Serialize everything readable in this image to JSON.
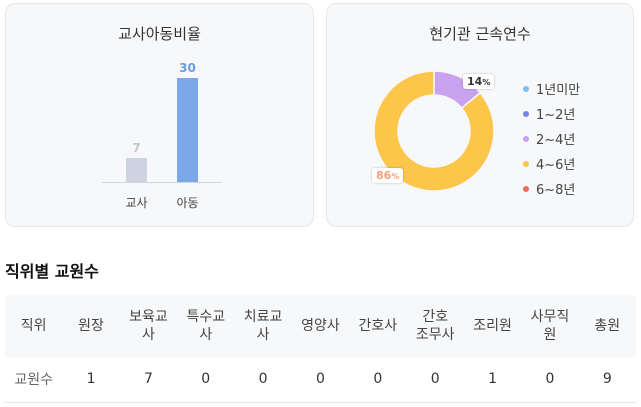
{
  "teacher_turnover": {
    "title": "교사아동비율",
    "chart_data": {
      "type": "bar",
      "categories": [
        "교사",
        "아동"
      ],
      "values": [
        7,
        30
      ],
      "colors": [
        "#cdd3e0",
        "#7aa8e8"
      ],
      "value_label_colors": [
        "#c2c6cf",
        "#6b9be0"
      ]
    }
  },
  "tenure": {
    "title": "현기관 근속연수",
    "chart_data": {
      "type": "pie",
      "slices": [
        {
          "label": "1년미만",
          "value": 0,
          "color": "#7ec1ec"
        },
        {
          "label": "1~2년",
          "value": 0,
          "color": "#6f86e6"
        },
        {
          "label": "2~4년",
          "value": 14,
          "color": "#c9a2f0"
        },
        {
          "label": "4~6년",
          "value": 86,
          "color": "#fcc64b"
        },
        {
          "label": "6~8년",
          "value": 0,
          "color": "#f06a5c"
        }
      ],
      "labels": {
        "small": {
          "pct": "14",
          "unit": "%"
        },
        "large": {
          "pct": "86",
          "unit": "%"
        }
      }
    }
  },
  "staff_table": {
    "title": "직위별 교원수",
    "headers": [
      "직위",
      "원장",
      "보육교\n사",
      "특수교\n사",
      "치료교\n사",
      "영양사",
      "간호사",
      "간호\n조무사",
      "조리원",
      "사무직\n원",
      "총원"
    ],
    "row": [
      "교원수",
      "1",
      "7",
      "0",
      "0",
      "0",
      "0",
      "0",
      "1",
      "0",
      "9"
    ]
  }
}
